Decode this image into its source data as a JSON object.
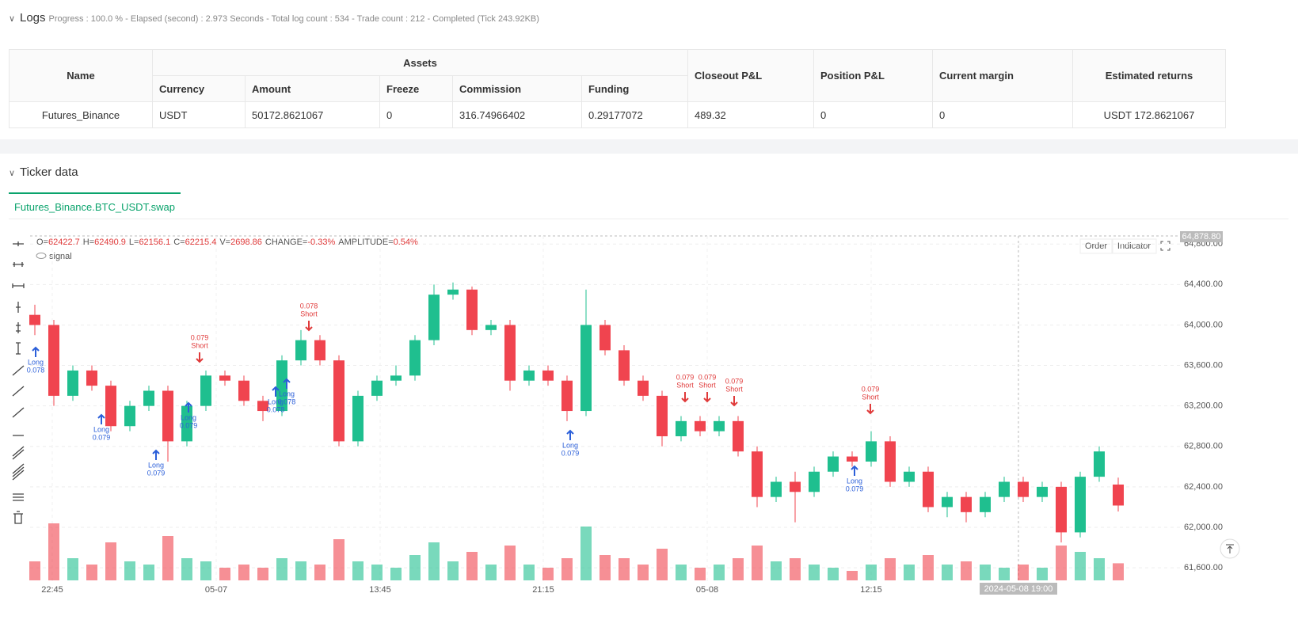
{
  "logs": {
    "title": "Logs",
    "status": "Progress : 100.0 % - Elapsed (second) : 2.973  Seconds - Total log count : 534 - Trade count : 212 - Completed (Tick 243.92KB)"
  },
  "table": {
    "name_header": "Name",
    "assets_header": "Assets",
    "asset_columns": [
      "Currency",
      "Amount",
      "Freeze",
      "Commission",
      "Funding"
    ],
    "other_columns": [
      "Closeout P&L",
      "Position P&L",
      "Current margin",
      "Estimated returns"
    ],
    "rows": [
      [
        "Futures_Binance",
        "USDT",
        "50172.8621067",
        "0",
        "316.74966402",
        "0.29177072",
        "489.32",
        "0",
        "0",
        "USDT 172.8621067"
      ]
    ]
  },
  "ticker": {
    "title": "Ticker data",
    "tab": "Futures_Binance.BTC_USDT.swap",
    "buttons": [
      "Order",
      "Indicator"
    ],
    "legend": "signal",
    "ohlc": [
      {
        "label": "O=",
        "value": "62422.7"
      },
      {
        "label": "H=",
        "value": "62490.9"
      },
      {
        "label": "L=",
        "value": "62156.1"
      },
      {
        "label": "C=",
        "value": "62215.4"
      },
      {
        "label": "V=",
        "value": "2698.86"
      },
      {
        "label": "CHANGE=",
        "value": "-0.33%"
      },
      {
        "label": "AMPLITUDE=",
        "value": "0.54%"
      }
    ],
    "crosshair_x": "2024-05-08 19:00",
    "crosshair_y": "64,878.80"
  },
  "chart_data": {
    "type": "candlestick",
    "ylim": [
      61460,
      64880
    ],
    "yticks": [
      {
        "value": 61600,
        "label": "61,600.00"
      },
      {
        "value": 62000,
        "label": "62,000.00"
      },
      {
        "value": 62400,
        "label": "62,400.00"
      },
      {
        "value": 62800,
        "label": "62,800.00"
      },
      {
        "value": 63200,
        "label": "63,200.00"
      },
      {
        "value": 63600,
        "label": "63,600.00"
      },
      {
        "value": 64000,
        "label": "64,000.00"
      },
      {
        "value": 64400,
        "label": "64,400.00"
      },
      {
        "value": 64800,
        "label": "64,800.00"
      }
    ],
    "xlabels": [
      "22:45",
      "05-07",
      "13:45",
      "21:15",
      "05-08",
      "12:15"
    ],
    "up_color": "#1fbf8f",
    "down_color": "#f0444f",
    "candles": [
      [
        64100,
        64200,
        63900,
        64000
      ],
      [
        64000,
        64050,
        63200,
        63300
      ],
      [
        63300,
        63600,
        63250,
        63550
      ],
      [
        63550,
        63600,
        63350,
        63400
      ],
      [
        63400,
        63450,
        62950,
        63000
      ],
      [
        63000,
        63250,
        62950,
        63200
      ],
      [
        63200,
        63400,
        63150,
        63350
      ],
      [
        63350,
        63400,
        62650,
        62850
      ],
      [
        62850,
        63250,
        62800,
        63200
      ],
      [
        63200,
        63550,
        63150,
        63500
      ],
      [
        63500,
        63550,
        63400,
        63450
      ],
      [
        63450,
        63500,
        63200,
        63250
      ],
      [
        63250,
        63300,
        63050,
        63150
      ],
      [
        63150,
        63700,
        63100,
        63650
      ],
      [
        63650,
        63950,
        63600,
        63850
      ],
      [
        63850,
        63900,
        63600,
        63650
      ],
      [
        63650,
        63700,
        62800,
        62850
      ],
      [
        62850,
        63350,
        62800,
        63300
      ],
      [
        63300,
        63500,
        63250,
        63450
      ],
      [
        63450,
        63600,
        63400,
        63500
      ],
      [
        63500,
        63900,
        63450,
        63850
      ],
      [
        63850,
        64400,
        63800,
        64300
      ],
      [
        64300,
        64420,
        64250,
        64350
      ],
      [
        64350,
        64380,
        63900,
        63950
      ],
      [
        63950,
        64050,
        63900,
        64000
      ],
      [
        64000,
        64050,
        63350,
        63450
      ],
      [
        63450,
        63600,
        63400,
        63550
      ],
      [
        63550,
        63600,
        63400,
        63450
      ],
      [
        63450,
        63500,
        63050,
        63150
      ],
      [
        63150,
        64350,
        63100,
        64000
      ],
      [
        64000,
        64050,
        63700,
        63750
      ],
      [
        63750,
        63800,
        63400,
        63450
      ],
      [
        63450,
        63500,
        63250,
        63300
      ],
      [
        63300,
        63350,
        62800,
        62900
      ],
      [
        62900,
        63100,
        62850,
        63050
      ],
      [
        63050,
        63100,
        62900,
        62950
      ],
      [
        62950,
        63100,
        62900,
        63050
      ],
      [
        63050,
        63100,
        62700,
        62750
      ],
      [
        62750,
        62800,
        62200,
        62300
      ],
      [
        62300,
        62500,
        62250,
        62450
      ],
      [
        62450,
        62550,
        62050,
        62350
      ],
      [
        62350,
        62600,
        62300,
        62550
      ],
      [
        62550,
        62750,
        62500,
        62700
      ],
      [
        62700,
        62750,
        62600,
        62650
      ],
      [
        62650,
        62950,
        62600,
        62850
      ],
      [
        62850,
        62900,
        62400,
        62450
      ],
      [
        62450,
        62600,
        62400,
        62550
      ],
      [
        62550,
        62600,
        62150,
        62200
      ],
      [
        62200,
        62350,
        62100,
        62300
      ],
      [
        62300,
        62350,
        62050,
        62150
      ],
      [
        62150,
        62350,
        62100,
        62300
      ],
      [
        62300,
        62500,
        62250,
        62450
      ],
      [
        62450,
        62500,
        62250,
        62300
      ],
      [
        62300,
        62450,
        62250,
        62400
      ],
      [
        62400,
        62450,
        61850,
        61950
      ],
      [
        61950,
        62550,
        61900,
        62500
      ],
      [
        62500,
        62800,
        62450,
        62750
      ],
      [
        62422.7,
        62490.9,
        62156.1,
        62215.4
      ]
    ],
    "volumes": [
      3000,
      9000,
      3500,
      2500,
      6000,
      3000,
      2500,
      7000,
      3500,
      3000,
      2000,
      2500,
      2000,
      3500,
      3000,
      2500,
      6500,
      3000,
      2500,
      2000,
      4000,
      6000,
      3000,
      4500,
      2500,
      5500,
      2500,
      2000,
      3500,
      8500,
      4000,
      3500,
      2500,
      5000,
      2500,
      2000,
      2500,
      3500,
      5500,
      3000,
      3500,
      2500,
      2000,
      1500,
      2500,
      3500,
      2500,
      4000,
      2500,
      3000,
      2500,
      2000,
      2500,
      2000,
      5500,
      4500,
      3500,
      2698.86
    ],
    "vlim": [
      0,
      10000
    ],
    "signals": [
      {
        "side": "Long",
        "amount": "0.078"
      },
      {
        "side": "Long",
        "amount": "0.079"
      },
      {
        "side": "Long",
        "amount": "0.079"
      },
      {
        "side": "Long",
        "amount": "0.079"
      },
      {
        "side": "Long",
        "amount": "0.078"
      },
      {
        "side": "Long",
        "amount": "0.078"
      },
      {
        "side": "Long",
        "amount": "0.079"
      },
      {
        "side": "Long",
        "amount": "0.079"
      },
      {
        "side": "Short",
        "amount": "0.079"
      },
      {
        "side": "Short",
        "amount": "0.078"
      },
      {
        "side": "Short",
        "amount": "0.079"
      },
      {
        "side": "Short",
        "amount": "0.079"
      },
      {
        "side": "Short",
        "amount": "0.079"
      },
      {
        "side": "Short",
        "amount": "0.079"
      }
    ]
  }
}
